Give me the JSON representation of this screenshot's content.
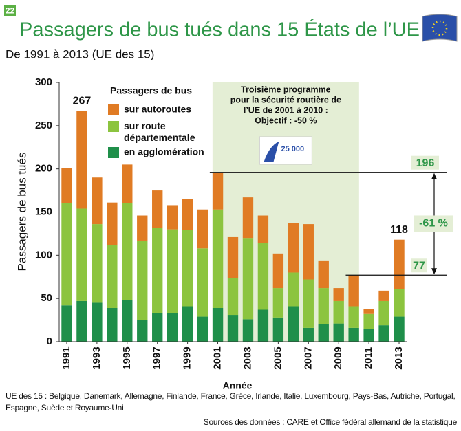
{
  "page_number": "22",
  "chart_data": {
    "type": "stacked_bar",
    "title": "Passagers de bus tués dans 15 États de l’UE",
    "subtitle": "De 1991 à 2013 (UE des 15)",
    "y_label": "Passagers de bus tués",
    "x_label": "Année",
    "legend_title": "Passagers de bus",
    "x": [
      1991,
      1992,
      1993,
      1994,
      1995,
      1996,
      1997,
      1998,
      1999,
      2000,
      2001,
      2002,
      2003,
      2004,
      2005,
      2006,
      2007,
      2008,
      2009,
      2010,
      2011,
      2012,
      2013
    ],
    "xlim": [
      1990.5,
      2013.5
    ],
    "xticks": [
      1991,
      1993,
      1995,
      1997,
      1999,
      2001,
      2003,
      2005,
      2007,
      2009,
      2011,
      2013
    ],
    "ylim": [
      0,
      300
    ],
    "yticks": [
      0,
      50,
      100,
      150,
      200,
      250,
      300
    ],
    "series": [
      {
        "name": "en agglomération",
        "color": "#1f8f4a",
        "values": [
          42,
          47,
          45,
          39,
          48,
          25,
          33,
          33,
          41,
          29,
          39,
          31,
          26,
          37,
          28,
          41,
          16,
          20,
          21,
          16,
          15,
          19,
          29
        ]
      },
      {
        "name": "sur route départementale",
        "color": "#8cc43f",
        "values": [
          118,
          107,
          91,
          73,
          112,
          92,
          99,
          97,
          88,
          79,
          114,
          43,
          94,
          77,
          34,
          39,
          56,
          42,
          26,
          25,
          17,
          28,
          32
        ]
      },
      {
        "name": "sur autoroutes",
        "color": "#e07b24",
        "values": [
          41,
          113,
          54,
          49,
          45,
          29,
          43,
          28,
          36,
          45,
          43,
          47,
          47,
          32,
          40,
          57,
          64,
          32,
          15,
          36,
          6,
          12,
          57
        ]
      }
    ],
    "total_labels": [
      null,
      "267",
      null,
      null,
      null,
      null,
      null,
      null,
      null,
      null,
      null,
      null,
      null,
      null,
      null,
      null,
      null,
      null,
      null,
      null,
      null,
      null,
      "118"
    ],
    "highlight": {
      "x": [
        2001,
        2010
      ],
      "color": "#e4eed5",
      "text": [
        "Troisième programme",
        "pour la sécurité routière de",
        "l’UE de 2001 à 2010 :",
        "Objectif : -50 %"
      ],
      "logo_text": "25 000"
    },
    "reference_lines": [
      {
        "value": 196,
        "label": "196"
      },
      {
        "value": 77,
        "label": "77"
      }
    ],
    "change_label": "-61 %"
  },
  "footnote": "UE des 15 : Belgique, Danemark, Allemagne, Finlande, France, Grèce, Irlande, Italie, Luxembourg, Pays-Bas, Autriche, Portugal, Espagne, Suède et Royaume-Uni",
  "source": "Sources des données : CARE et Office fédéral allemand de la statistique"
}
